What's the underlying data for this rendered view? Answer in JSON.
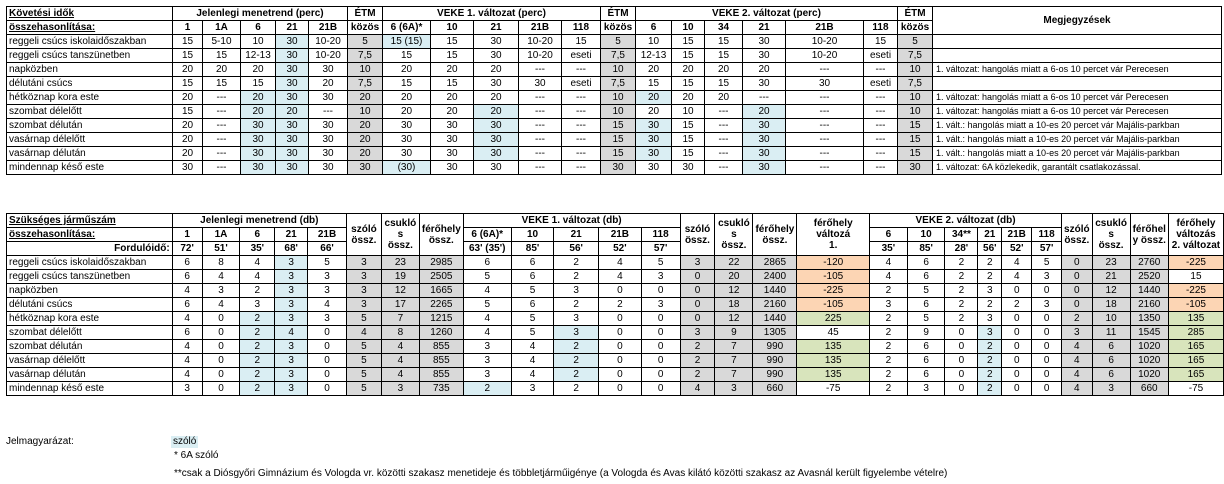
{
  "t1": {
    "title1": "Követési idők",
    "title2": "összehasonlítása:",
    "group_current": "Jelenlegi menetrend (perc)",
    "group_v1": "VEKE 1. változat (perc)",
    "group_v2": "VEKE 2. változat (perc)",
    "etm": "ÉTM",
    "kozos": "közös",
    "notes_header": "Megjegyzések",
    "cols_current": [
      "1",
      "1A",
      "6",
      "21",
      "21B"
    ],
    "cols_v1": [
      "6 (6A)*",
      "10",
      "21",
      "21B",
      "118"
    ],
    "cols_v2": [
      "6",
      "10",
      "34",
      "21",
      "21B",
      "118"
    ],
    "rows": [
      {
        "label": "reggeli csúcs iskolaidőszakban",
        "cur": [
          "15",
          "5-10",
          "10",
          "30",
          "10-20"
        ],
        "etm1": "5",
        "v1": [
          "15 (15)",
          "15",
          "30",
          "10-20",
          "15"
        ],
        "etm2": "5",
        "v2": [
          "10",
          "15",
          "15",
          "30",
          "10-20",
          "15"
        ],
        "etm3": "5",
        "note": ""
      },
      {
        "label": "reggeli csúcs tanszünetben",
        "cur": [
          "15",
          "15",
          "12-13",
          "30",
          "10-20"
        ],
        "etm1": "7,5",
        "v1": [
          "15",
          "15",
          "30",
          "10-20",
          "eseti"
        ],
        "etm2": "7,5",
        "v2": [
          "12-13",
          "15",
          "15",
          "30",
          "10-20",
          "eseti"
        ],
        "etm3": "7,5",
        "note": ""
      },
      {
        "label": "napközben",
        "cur": [
          "20",
          "20",
          "20",
          "30",
          "30"
        ],
        "etm1": "10",
        "v1": [
          "20",
          "20",
          "20",
          "---",
          "---"
        ],
        "etm2": "10",
        "v2": [
          "20",
          "20",
          "20",
          "20",
          "---",
          "---"
        ],
        "etm3": "10",
        "note": "1. változat: hangolás miatt a 6-os 10 percet vár Perecesen"
      },
      {
        "label": "délutáni csúcs",
        "cur": [
          "15",
          "15",
          "15",
          "30",
          "20"
        ],
        "etm1": "7,5",
        "v1": [
          "15",
          "15",
          "30",
          "30",
          "eseti"
        ],
        "etm2": "7,5",
        "v2": [
          "15",
          "15",
          "15",
          "30",
          "30",
          "eseti"
        ],
        "etm3": "7,5",
        "note": ""
      },
      {
        "label": "hétköznap kora este",
        "cur": [
          "20",
          "---",
          "20",
          "30",
          "30"
        ],
        "etm1": "20",
        "v1": [
          "20",
          "20",
          "20",
          "---",
          "---"
        ],
        "etm2": "10",
        "v2": [
          "20",
          "20",
          "20",
          "---",
          "---",
          "---"
        ],
        "etm3": "10",
        "note": "1. változat: hangolás miatt a 6-os 10 percet vár Perecesen"
      },
      {
        "label": "szombat délelőtt",
        "cur": [
          "15",
          "---",
          "20",
          "20",
          "---"
        ],
        "etm1": "10",
        "v1": [
          "20",
          "20",
          "20",
          "---",
          "---"
        ],
        "etm2": "10",
        "v2": [
          "20",
          "10",
          "---",
          "20",
          "---",
          "---"
        ],
        "etm3": "10",
        "note": "1. változat: hangolás miatt a 6-os 10 percet vár Perecesen"
      },
      {
        "label": "szombat délután",
        "cur": [
          "20",
          "---",
          "30",
          "30",
          "30"
        ],
        "etm1": "20",
        "v1": [
          "30",
          "30",
          "30",
          "---",
          "---"
        ],
        "etm2": "15",
        "v2": [
          "30",
          "15",
          "---",
          "30",
          "---",
          "---"
        ],
        "etm3": "15",
        "note": "1. vált.: hangolás miatt a 10-es 20 percet vár Majális-parkban"
      },
      {
        "label": "vasárnap délelőtt",
        "cur": [
          "20",
          "---",
          "30",
          "30",
          "30"
        ],
        "etm1": "20",
        "v1": [
          "30",
          "30",
          "30",
          "---",
          "---"
        ],
        "etm2": "15",
        "v2": [
          "30",
          "15",
          "---",
          "30",
          "---",
          "---"
        ],
        "etm3": "15",
        "note": "1. vált.: hangolás miatt a 10-es 20 percet vár Majális-parkban"
      },
      {
        "label": "vasárnap délután",
        "cur": [
          "20",
          "---",
          "30",
          "30",
          "30"
        ],
        "etm1": "20",
        "v1": [
          "30",
          "30",
          "30",
          "---",
          "---"
        ],
        "etm2": "15",
        "v2": [
          "30",
          "15",
          "---",
          "30",
          "---",
          "---"
        ],
        "etm3": "15",
        "note": "1. vált.: hangolás miatt a 10-es 20 percet vár Majális-parkban"
      },
      {
        "label": "mindennap késő este",
        "cur": [
          "30",
          "---",
          "30",
          "30",
          "30"
        ],
        "etm1": "30",
        "v1": [
          "(30)",
          "30",
          "30",
          "---",
          "---"
        ],
        "etm2": "30",
        "v2": [
          "30",
          "30",
          "---",
          "30",
          "---",
          "---"
        ],
        "etm3": "30",
        "note": "1. változat: 6A közlekedik, garantált csatlakozással."
      }
    ]
  },
  "t2": {
    "title1": "Szükséges járműszám",
    "title2": "összehasonlítása:",
    "group_current": "Jelenlegi menetrend (db)",
    "group_v1": "VEKE 1. változat (db)",
    "group_v2": "VEKE 2. változat (db)",
    "fordulo_label": "Fordulóidő:",
    "szolo_ossz": [
      "szóló",
      "össz."
    ],
    "csuklo_ossz": [
      "csukló",
      "s",
      "össz."
    ],
    "ferohely_ossz": [
      "férőhely",
      "össz."
    ],
    "ferohely_valt1": [
      "férőhely",
      "változá",
      "1."
    ],
    "ferohely_ossz_v2": [
      "férőhel",
      "y össz."
    ],
    "ferohely_valt2": [
      "férőhely",
      "változás",
      "2. változat"
    ],
    "cols_current": [
      "1",
      "1A",
      "6",
      "21",
      "21B"
    ],
    "turn_current": [
      "72'",
      "51'",
      "35'",
      "68'",
      "66'"
    ],
    "cols_v1": [
      "6 (6A)*",
      "10",
      "21",
      "21B",
      "118"
    ],
    "turn_v1": [
      "63' (35')",
      "85'",
      "56'",
      "52'",
      "57'"
    ],
    "cols_v2": [
      "6",
      "10",
      "34**",
      "21",
      "21B",
      "118"
    ],
    "turn_v2": [
      "35'",
      "85'",
      "28'",
      "56'",
      "52'",
      "57'"
    ],
    "rows": [
      {
        "label": "reggeli csúcs iskolaidőszakban",
        "cur": [
          "6",
          "8",
          "4",
          "3",
          "5"
        ],
        "s1": "3",
        "c1": "23",
        "f1": "2985",
        "v1": [
          "6",
          "6",
          "2",
          "4",
          "5"
        ],
        "s2": "3",
        "c2": "22",
        "f2": "2865",
        "d1": "-120",
        "v2": [
          "4",
          "6",
          "2",
          "2",
          "4",
          "5"
        ],
        "s3": "0",
        "c3": "23",
        "f3": "2760",
        "d2": "-225"
      },
      {
        "label": "reggeli csúcs tanszünetben",
        "cur": [
          "6",
          "4",
          "4",
          "3",
          "3"
        ],
        "s1": "3",
        "c1": "19",
        "f1": "2505",
        "v1": [
          "5",
          "6",
          "2",
          "4",
          "3"
        ],
        "s2": "0",
        "c2": "20",
        "f2": "2400",
        "d1": "-105",
        "v2": [
          "4",
          "6",
          "2",
          "2",
          "4",
          "3"
        ],
        "s3": "0",
        "c3": "21",
        "f3": "2520",
        "d2": "15"
      },
      {
        "label": "napközben",
        "cur": [
          "4",
          "3",
          "2",
          "3",
          "3"
        ],
        "s1": "3",
        "c1": "12",
        "f1": "1665",
        "v1": [
          "4",
          "5",
          "3",
          "0",
          "0"
        ],
        "s2": "0",
        "c2": "12",
        "f2": "1440",
        "d1": "-225",
        "v2": [
          "2",
          "5",
          "2",
          "3",
          "0",
          "0"
        ],
        "s3": "0",
        "c3": "12",
        "f3": "1440",
        "d2": "-225"
      },
      {
        "label": "délutáni csúcs",
        "cur": [
          "6",
          "4",
          "3",
          "3",
          "4"
        ],
        "s1": "3",
        "c1": "17",
        "f1": "2265",
        "v1": [
          "5",
          "6",
          "2",
          "2",
          "3"
        ],
        "s2": "0",
        "c2": "18",
        "f2": "2160",
        "d1": "-105",
        "v2": [
          "3",
          "6",
          "2",
          "2",
          "2",
          "3"
        ],
        "s3": "0",
        "c3": "18",
        "f3": "2160",
        "d2": "-105"
      },
      {
        "label": "hétköznap kora este",
        "cur": [
          "4",
          "0",
          "2",
          "3",
          "3"
        ],
        "s1": "5",
        "c1": "7",
        "f1": "1215",
        "v1": [
          "4",
          "5",
          "3",
          "0",
          "0"
        ],
        "s2": "0",
        "c2": "12",
        "f2": "1440",
        "d1": "225",
        "v2": [
          "2",
          "5",
          "2",
          "3",
          "0",
          "0"
        ],
        "s3": "2",
        "c3": "10",
        "f3": "1350",
        "d2": "135"
      },
      {
        "label": "szombat délelőtt",
        "cur": [
          "6",
          "0",
          "2",
          "4",
          "0"
        ],
        "s1": "4",
        "c1": "8",
        "f1": "1260",
        "v1": [
          "4",
          "5",
          "3",
          "0",
          "0"
        ],
        "s2": "3",
        "c2": "9",
        "f2": "1305",
        "d1": "45",
        "v2": [
          "2",
          "9",
          "0",
          "3",
          "0",
          "0"
        ],
        "s3": "3",
        "c3": "11",
        "f3": "1545",
        "d2": "285"
      },
      {
        "label": "szombat délután",
        "cur": [
          "4",
          "0",
          "2",
          "3",
          "0"
        ],
        "s1": "5",
        "c1": "4",
        "f1": "855",
        "v1": [
          "3",
          "4",
          "2",
          "0",
          "0"
        ],
        "s2": "2",
        "c2": "7",
        "f2": "990",
        "d1": "135",
        "v2": [
          "2",
          "6",
          "0",
          "2",
          "0",
          "0"
        ],
        "s3": "4",
        "c3": "6",
        "f3": "1020",
        "d2": "165"
      },
      {
        "label": "vasárnap délelőtt",
        "cur": [
          "4",
          "0",
          "2",
          "3",
          "0"
        ],
        "s1": "5",
        "c1": "4",
        "f1": "855",
        "v1": [
          "3",
          "4",
          "2",
          "0",
          "0"
        ],
        "s2": "2",
        "c2": "7",
        "f2": "990",
        "d1": "135",
        "v2": [
          "2",
          "6",
          "0",
          "2",
          "0",
          "0"
        ],
        "s3": "4",
        "c3": "6",
        "f3": "1020",
        "d2": "165"
      },
      {
        "label": "vasárnap délután",
        "cur": [
          "4",
          "0",
          "2",
          "3",
          "0"
        ],
        "s1": "5",
        "c1": "4",
        "f1": "855",
        "v1": [
          "3",
          "4",
          "2",
          "0",
          "0"
        ],
        "s2": "2",
        "c2": "7",
        "f2": "990",
        "d1": "135",
        "v2": [
          "2",
          "6",
          "0",
          "2",
          "0",
          "0"
        ],
        "s3": "4",
        "c3": "6",
        "f3": "1020",
        "d2": "165"
      },
      {
        "label": "mindennap késő este",
        "cur": [
          "3",
          "0",
          "2",
          "3",
          "0"
        ],
        "s1": "5",
        "c1": "3",
        "f1": "735",
        "v1": [
          "2",
          "3",
          "2",
          "0",
          "0"
        ],
        "s2": "4",
        "c2": "3",
        "f2": "660",
        "d1": "-75",
        "v2": [
          "2",
          "3",
          "0",
          "2",
          "0",
          "0"
        ],
        "s3": "4",
        "c3": "3",
        "f3": "660",
        "d2": "-75"
      }
    ]
  },
  "legend": {
    "title": "Jelmagyarázat:",
    "szolo": "szóló",
    "note1": "* 6A szóló",
    "note2": "**csak a Diósgyőri Gimnázium és Vologda vr. közötti szakasz menetideje és többletjárműigénye (a Vologda és Avas kilátó közötti szakasz az Avasnál került figyelembe vételre)"
  }
}
